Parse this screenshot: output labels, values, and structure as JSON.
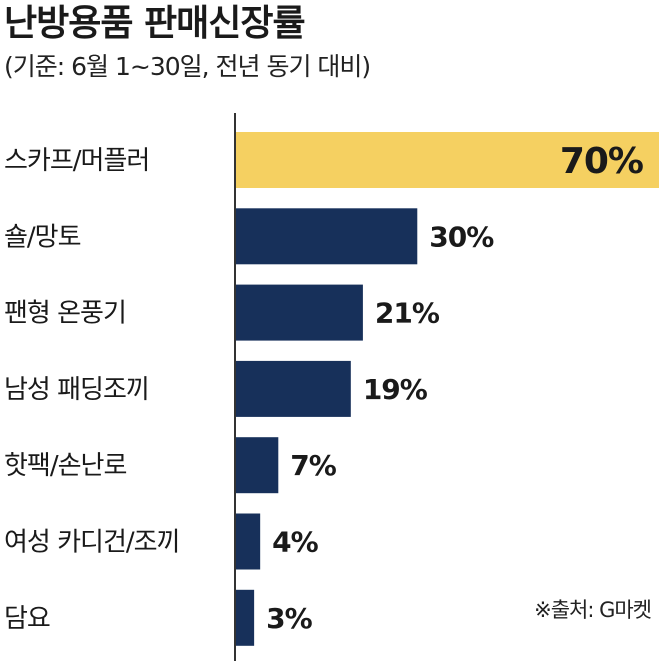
{
  "header": {
    "title": "난방용품 판매신장률",
    "subtitle": "(기준: 6월 1~30일, 전년 동기 대비)"
  },
  "source": "※출처: G마켓",
  "colors": {
    "highlight_bar": "#f5d061",
    "bar": "#17305a",
    "axis": "#333333",
    "text": "#1a1a1a"
  },
  "chart_data": {
    "type": "bar",
    "orientation": "horizontal",
    "title": "난방용품 판매신장률",
    "subtitle": "(기준: 6월 1~30일, 전년 동기 대비)",
    "categories": [
      "스카프/머플러",
      "숄/망토",
      "팬형 온풍기",
      "남성 패딩조끼",
      "핫팩/손난로",
      "여성 카디건/조끼",
      "담요"
    ],
    "values": [
      70,
      30,
      21,
      19,
      7,
      4,
      3
    ],
    "value_labels": [
      "70%",
      "30%",
      "21%",
      "19%",
      "7%",
      "4%",
      "3%"
    ],
    "highlight_index": 0,
    "xlim": [
      0,
      70
    ],
    "grid": false,
    "legend": "none"
  }
}
